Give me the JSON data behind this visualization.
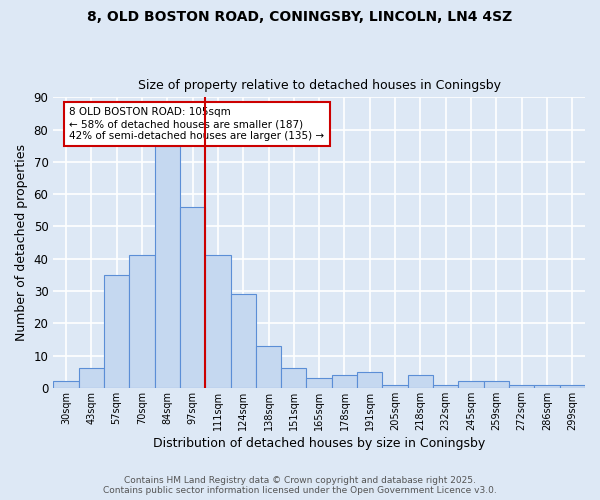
{
  "title1": "8, OLD BOSTON ROAD, CONINGSBY, LINCOLN, LN4 4SZ",
  "title2": "Size of property relative to detached houses in Coningsby",
  "xlabel": "Distribution of detached houses by size in Coningsby",
  "ylabel": "Number of detached properties",
  "categories": [
    "30sqm",
    "43sqm",
    "57sqm",
    "70sqm",
    "84sqm",
    "97sqm",
    "111sqm",
    "124sqm",
    "138sqm",
    "151sqm",
    "165sqm",
    "178sqm",
    "191sqm",
    "205sqm",
    "218sqm",
    "232sqm",
    "245sqm",
    "259sqm",
    "272sqm",
    "286sqm",
    "299sqm"
  ],
  "values": [
    2,
    6,
    35,
    41,
    75,
    56,
    41,
    29,
    13,
    6,
    3,
    4,
    5,
    1,
    4,
    1,
    2,
    2,
    1,
    1,
    1
  ],
  "bar_color": "#c5d8f0",
  "bar_edge_color": "#5b8ed6",
  "vline_color": "#cc0000",
  "annotation_text": "8 OLD BOSTON ROAD: 105sqm\n← 58% of detached houses are smaller (187)\n42% of semi-detached houses are larger (135) →",
  "annotation_box_color": "#ffffff",
  "annotation_box_edge": "#cc0000",
  "footer1": "Contains HM Land Registry data © Crown copyright and database right 2025.",
  "footer2": "Contains public sector information licensed under the Open Government Licence v3.0.",
  "ylim": [
    0,
    90
  ],
  "yticks": [
    0,
    10,
    20,
    30,
    40,
    50,
    60,
    70,
    80,
    90
  ],
  "background_color": "#dde8f5",
  "plot_bg_color": "#dde8f5",
  "grid_color": "#ffffff",
  "title1_fontsize": 10,
  "title2_fontsize": 9
}
